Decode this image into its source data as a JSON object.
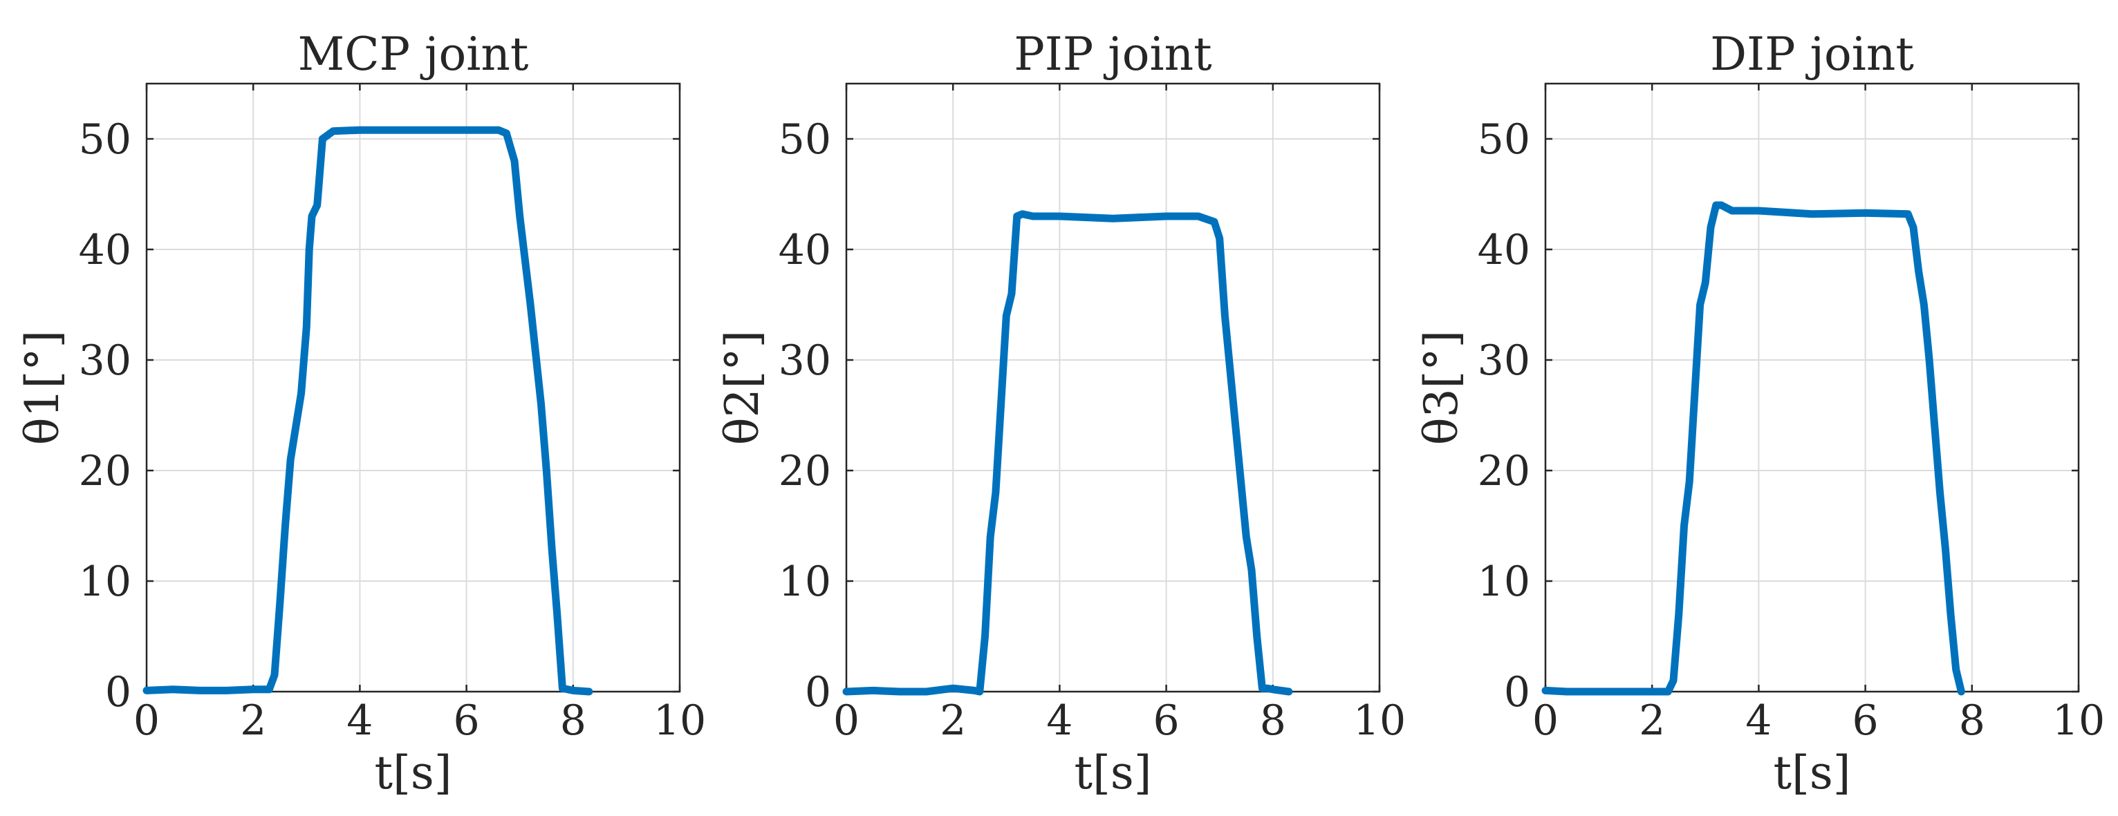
{
  "chart_data": [
    {
      "type": "line",
      "title": "MCP joint",
      "xlabel": "t[s]",
      "ylabel": "θ1[°]",
      "xlim": [
        0,
        10
      ],
      "ylim": [
        0,
        55
      ],
      "xticks": [
        "0",
        "2",
        "4",
        "6",
        "8",
        "10"
      ],
      "yticks": [
        "0",
        "10",
        "20",
        "30",
        "40",
        "50"
      ],
      "grid": true,
      "series": [
        {
          "color": "#0072BD",
          "x": [
            0.0,
            0.5,
            1.0,
            1.5,
            2.0,
            2.3,
            2.4,
            2.5,
            2.6,
            2.7,
            2.8,
            2.9,
            3.0,
            3.05,
            3.1,
            3.2,
            3.3,
            3.5,
            4.0,
            5.0,
            6.0,
            6.6,
            6.75,
            6.9,
            7.0,
            7.2,
            7.4,
            7.5,
            7.6,
            7.7,
            7.8,
            7.9,
            8.0,
            8.3
          ],
          "y": [
            0.1,
            0.2,
            0.1,
            0.1,
            0.2,
            0.2,
            1.5,
            8,
            15,
            21,
            24,
            27,
            33,
            40,
            43,
            44,
            50,
            50.7,
            50.8,
            50.8,
            50.8,
            50.8,
            50.5,
            48,
            43,
            35,
            26,
            20,
            13,
            7,
            0.3,
            0.2,
            0.1,
            0.0
          ]
        }
      ]
    },
    {
      "type": "line",
      "title": "PIP joint",
      "xlabel": "t[s]",
      "ylabel": "θ2[°]",
      "xlim": [
        0,
        10
      ],
      "ylim": [
        0,
        55
      ],
      "xticks": [
        "0",
        "2",
        "4",
        "6",
        "8",
        "10"
      ],
      "yticks": [
        "0",
        "10",
        "20",
        "30",
        "40",
        "50"
      ],
      "grid": true,
      "series": [
        {
          "color": "#0072BD",
          "x": [
            0.0,
            0.5,
            1.0,
            1.5,
            2.0,
            2.4,
            2.5,
            2.6,
            2.7,
            2.8,
            2.9,
            3.0,
            3.1,
            3.2,
            3.3,
            3.5,
            4.0,
            5.0,
            6.0,
            6.6,
            6.9,
            7.0,
            7.1,
            7.3,
            7.5,
            7.6,
            7.7,
            7.8,
            7.9,
            8.0,
            8.3
          ],
          "y": [
            0.0,
            0.1,
            0.0,
            0.0,
            0.3,
            0.1,
            0.0,
            5,
            14,
            18,
            26,
            34,
            36,
            43,
            43.2,
            43,
            43,
            42.8,
            43,
            43,
            42.5,
            41,
            34,
            24,
            14,
            11,
            5,
            0.3,
            0.3,
            0.2,
            0.0
          ]
        }
      ]
    },
    {
      "type": "line",
      "title": "DIP joint",
      "xlabel": "t[s]",
      "ylabel": "θ3[°]",
      "xlim": [
        0,
        10
      ],
      "ylim": [
        0,
        55
      ],
      "xticks": [
        "0",
        "2",
        "4",
        "6",
        "8",
        "10"
      ],
      "yticks": [
        "0",
        "10",
        "20",
        "30",
        "40",
        "50"
      ],
      "grid": true,
      "series": [
        {
          "color": "#0072BD",
          "x": [
            0.0,
            0.4,
            0.8,
            1.2,
            2.0,
            2.3,
            2.4,
            2.5,
            2.6,
            2.7,
            2.8,
            2.9,
            3.0,
            3.1,
            3.2,
            3.3,
            3.5,
            4.0,
            5.0,
            6.0,
            6.8,
            6.9,
            7.0,
            7.1,
            7.2,
            7.3,
            7.4,
            7.5,
            7.6,
            7.7,
            7.8
          ],
          "y": [
            0.1,
            0.0,
            0.0,
            0.0,
            0.0,
            0.0,
            1,
            7,
            15,
            19,
            27,
            35,
            37,
            42,
            44,
            44,
            43.5,
            43.5,
            43.2,
            43.3,
            43.2,
            42,
            38,
            35,
            30,
            24,
            18,
            13,
            7,
            2,
            0.0
          ]
        }
      ]
    }
  ]
}
